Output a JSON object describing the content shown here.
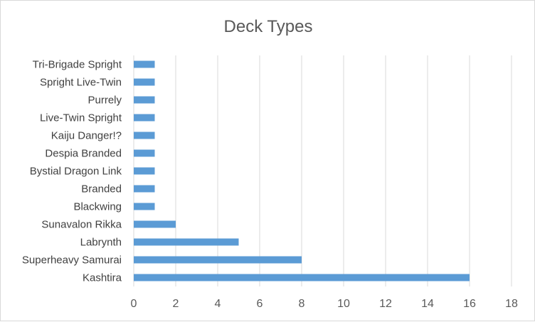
{
  "chart_data": {
    "type": "bar",
    "orientation": "horizontal",
    "title": "Deck Types",
    "categories": [
      "Kashtira",
      "Superheavy Samurai",
      "Labrynth",
      "Sunavalon Rikka",
      "Blackwing",
      "Branded",
      "Bystial Dragon Link",
      "Despia Branded",
      "Kaiju Danger!?",
      "Live-Twin Spright",
      "Purrely",
      "Spright Live-Twin",
      "Tri-Brigade Spright"
    ],
    "values": [
      16,
      8,
      5,
      2,
      1,
      1,
      1,
      1,
      1,
      1,
      1,
      1,
      1
    ],
    "xlim": [
      0,
      18
    ],
    "xticks": [
      "0",
      "2",
      "4",
      "6",
      "8",
      "10",
      "12",
      "14",
      "16",
      "18"
    ],
    "grid": true,
    "legend": "none",
    "bar_color": "#5b9bd5",
    "grid_color": "#d9d9d9"
  }
}
